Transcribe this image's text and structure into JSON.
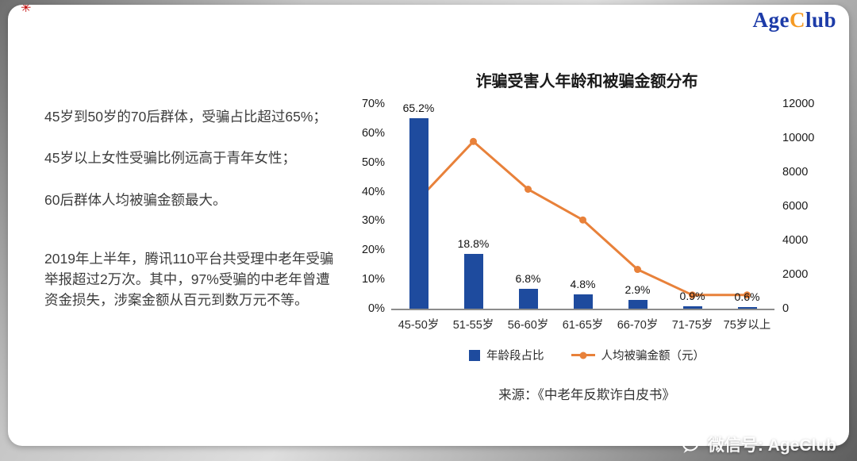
{
  "logo": {
    "part1": "Age",
    "part2": "C",
    "part3": "lub"
  },
  "corner_mark": "✳",
  "left_panel": {
    "paragraphs": [
      "45岁到50岁的70后群体，受骗占比超过65%；",
      "45岁以上女性受骗比例远高于青年女性；",
      "60后群体人均被骗金额最大。",
      "2019年上半年，腾讯110平台共受理中老年受骗举报超过2万次。其中，97%受骗的中老年曾遭资金损失，涉案金额从百元到数万元不等。"
    ]
  },
  "chart_data": {
    "type": "combo-bar-line",
    "title": "诈骗受害人年龄和被骗金额分布",
    "categories": [
      "45-50岁",
      "51-55岁",
      "56-60岁",
      "61-65岁",
      "66-70岁",
      "71-75岁",
      "75岁以上"
    ],
    "series": [
      {
        "name": "年龄段占比",
        "type": "bar",
        "axis": "left",
        "values": [
          65.2,
          18.8,
          6.8,
          4.8,
          2.9,
          0.9,
          0.6
        ],
        "labels": [
          "65.2%",
          "18.8%",
          "6.8%",
          "4.8%",
          "2.9%",
          "0.9%",
          "0.6%"
        ],
        "color": "#1e4b9e"
      },
      {
        "name": "人均被骗金额（元）",
        "type": "line",
        "axis": "right",
        "values": [
          6400,
          9800,
          7000,
          5200,
          2300,
          800,
          800
        ],
        "color": "#e8813a"
      }
    ],
    "left_axis": {
      "min": 0,
      "max": 70,
      "ticks": [
        "0%",
        "10%",
        "20%",
        "30%",
        "40%",
        "50%",
        "60%",
        "70%"
      ]
    },
    "right_axis": {
      "min": 0,
      "max": 12000,
      "ticks": [
        "0",
        "2000",
        "4000",
        "6000",
        "8000",
        "10000",
        "12000"
      ]
    },
    "legend_position": "bottom",
    "grid": false
  },
  "source": "来源：《中老年反欺诈白皮书》",
  "watermark": {
    "text": "微信号: AgeClub"
  },
  "colors": {
    "bar": "#1e4b9e",
    "line": "#e8813a",
    "logo_blue": "#1c3ba8",
    "logo_orange": "#f59a23"
  }
}
